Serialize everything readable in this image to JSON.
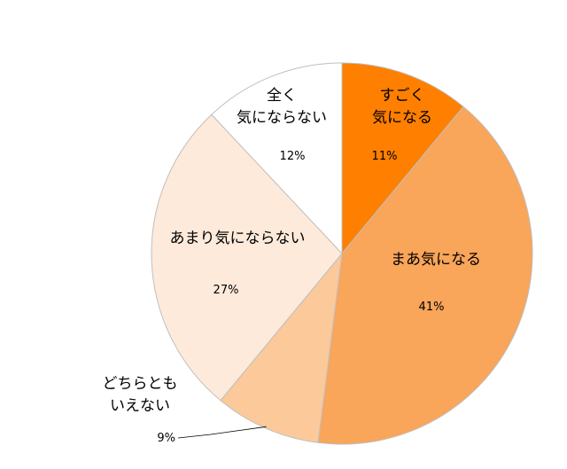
{
  "chart_data": {
    "type": "pie",
    "slices": [
      {
        "label": "すごく\n気になる",
        "value": 11,
        "pct_label": "11%",
        "color": "#ff7f00"
      },
      {
        "label": "まあ気になる",
        "value": 41,
        "pct_label": "41%",
        "color": "#f9a55a"
      },
      {
        "label": "どちらとも\nいえない",
        "value": 9,
        "pct_label": "9%",
        "color": "#fbc99a"
      },
      {
        "label": "あまり気にならない",
        "value": 27,
        "pct_label": "27%",
        "color": "#fdeadb"
      },
      {
        "label": "全く\n気にならない",
        "value": 12,
        "pct_label": "12%",
        "color": "#ffffff"
      }
    ],
    "start_angle_deg": 0,
    "direction": "clockwise",
    "legend": "none"
  }
}
